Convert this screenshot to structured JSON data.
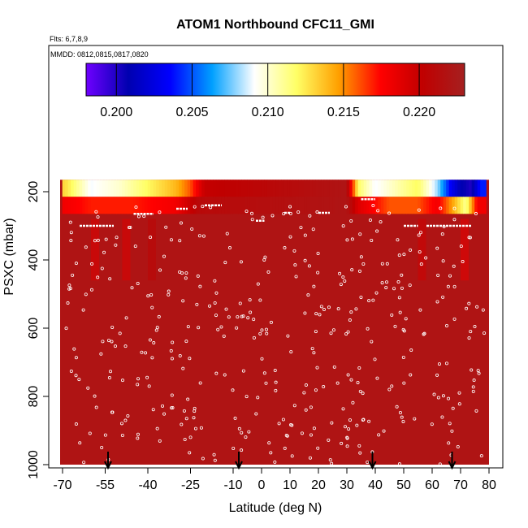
{
  "chart_data": {
    "type": "heatmap",
    "title": "ATOM1 Northbound CFC11_GMI",
    "subtitle_flights": "Flts: 6,7,8,9",
    "subtitle_dates": "MMDD: 0812,0815,0817,0820",
    "xlabel": "Latitude (deg N)",
    "ylabel": "PSXC (mbar)",
    "xlim": [
      -70,
      80
    ],
    "ylim": [
      1000,
      150
    ],
    "x_ticks": [
      -70,
      -55,
      -40,
      -25,
      -10,
      0,
      10,
      20,
      30,
      40,
      50,
      60,
      70,
      80
    ],
    "y_ticks": [
      200,
      400,
      600,
      800,
      1000
    ],
    "colorbar": {
      "range": [
        0.198,
        0.223
      ],
      "ticks": [
        0.2,
        0.205,
        0.21,
        0.215,
        0.22
      ],
      "tick_labels": [
        "0.200",
        "0.205",
        "0.210",
        "0.215",
        "0.220"
      ],
      "palette": [
        "#6f00ff",
        "#0000b0",
        "#0000ff",
        "#00a0ff",
        "#ffffff",
        "#ffff66",
        "#ffa000",
        "#ff0000",
        "#c00000",
        "#a52020"
      ]
    },
    "profile_markers_lat": [
      -54,
      -8,
      39,
      67
    ],
    "field_summary": {
      "background_value": 0.222,
      "upper_layer_pressure": [
        165,
        215
      ],
      "upper_layer_values": [
        {
          "lat": -69,
          "value": 0.213
        },
        {
          "lat": -60,
          "value": 0.209
        },
        {
          "lat": -50,
          "value": 0.21
        },
        {
          "lat": -40,
          "value": 0.212
        },
        {
          "lat": -30,
          "value": 0.214
        },
        {
          "lat": -25,
          "value": 0.216
        },
        {
          "lat": -20,
          "value": 0.22
        },
        {
          "lat": 30,
          "value": 0.222
        },
        {
          "lat": 34,
          "value": 0.212
        },
        {
          "lat": 40,
          "value": 0.209
        },
        {
          "lat": 45,
          "value": 0.21
        },
        {
          "lat": 55,
          "value": 0.212
        },
        {
          "lat": 62,
          "value": 0.208
        },
        {
          "lat": 67,
          "value": 0.203
        },
        {
          "lat": 70,
          "value": 0.201
        },
        {
          "lat": 74,
          "value": 0.2
        },
        {
          "lat": 77,
          "value": 0.204
        }
      ],
      "second_layer_pressure": [
        215,
        265
      ],
      "second_layer_values": [
        {
          "lat": -69,
          "value": 0.218
        },
        {
          "lat": -60,
          "value": 0.217
        },
        {
          "lat": -45,
          "value": 0.217
        },
        {
          "lat": -30,
          "value": 0.218
        },
        {
          "lat": -22,
          "value": 0.221
        },
        {
          "lat": 30,
          "value": 0.222
        },
        {
          "lat": 34,
          "value": 0.219
        },
        {
          "lat": 45,
          "value": 0.216
        },
        {
          "lat": 55,
          "value": 0.216
        },
        {
          "lat": 62,
          "value": 0.218
        },
        {
          "lat": 68,
          "value": 0.214
        },
        {
          "lat": 72,
          "value": 0.211
        },
        {
          "lat": 76,
          "value": 0.218
        }
      ]
    }
  }
}
